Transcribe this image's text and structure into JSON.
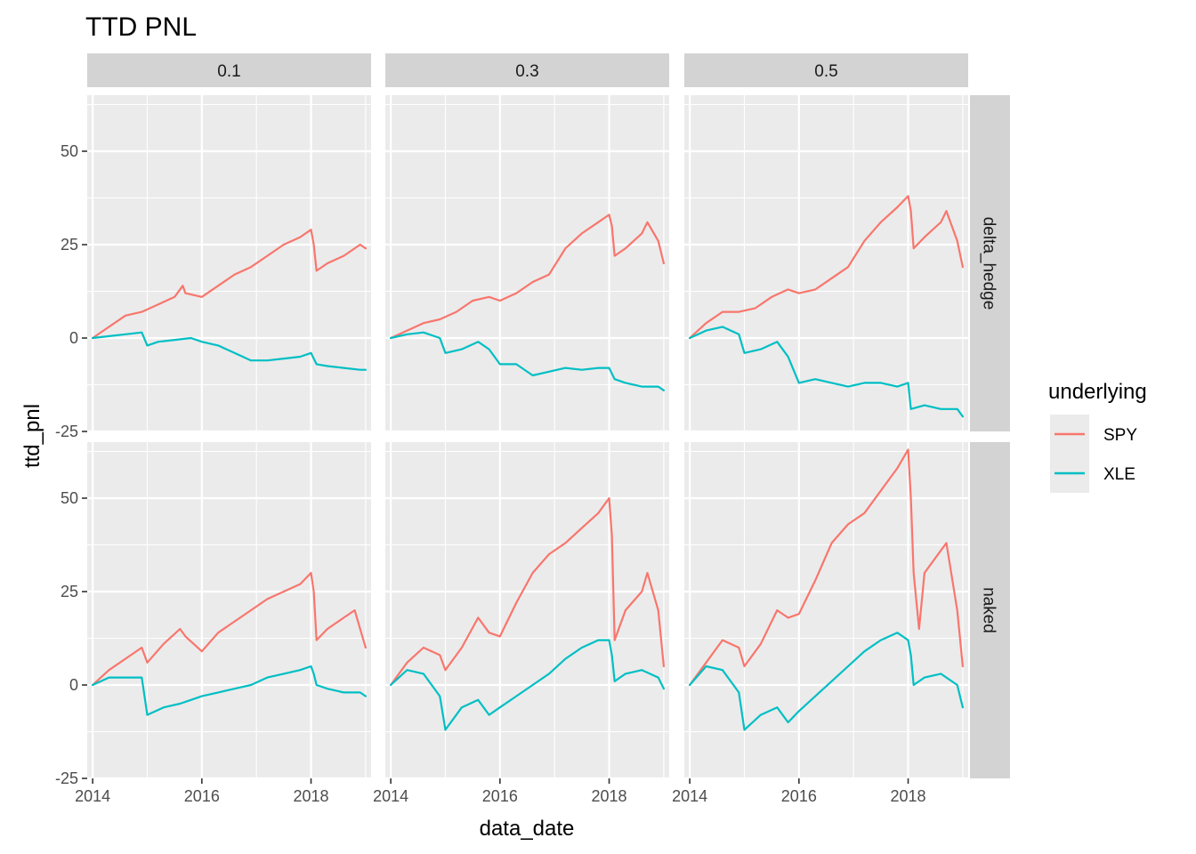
{
  "chart_data": {
    "type": "line",
    "title": "TTD PNL",
    "xlabel": "data_date",
    "ylabel": "ttd_pnl",
    "xlim": [
      2013.9,
      2019.1
    ],
    "ylim": [
      -25,
      65
    ],
    "x_ticks": [
      2014,
      2016,
      2018
    ],
    "y_ticks": [
      -25,
      0,
      25,
      50
    ],
    "column_facets": [
      "0.1",
      "0.3",
      "0.5"
    ],
    "row_facets": [
      "delta_hedge",
      "naked"
    ],
    "grid": true,
    "legend": {
      "title": "underlying",
      "position": "right",
      "entries": [
        {
          "name": "SPY",
          "color": "#F8766D"
        },
        {
          "name": "XLE",
          "color": "#00BFC4"
        }
      ]
    },
    "panels": [
      {
        "col": "0.1",
        "row": "delta_hedge",
        "series": [
          {
            "name": "SPY",
            "x": [
              2014.0,
              2014.3,
              2014.6,
              2014.9,
              2015.2,
              2015.5,
              2015.65,
              2015.7,
              2016.0,
              2016.3,
              2016.6,
              2016.9,
              2017.2,
              2017.5,
              2017.8,
              2018.0,
              2018.05,
              2018.1,
              2018.3,
              2018.6,
              2018.9,
              2019.0
            ],
            "y": [
              0,
              3,
              6,
              7,
              9,
              11,
              14,
              12,
              11,
              14,
              17,
              19,
              22,
              25,
              27,
              29,
              25,
              18,
              20,
              22,
              25,
              24
            ]
          },
          {
            "name": "XLE",
            "x": [
              2014.0,
              2014.3,
              2014.6,
              2014.9,
              2015.0,
              2015.2,
              2015.5,
              2015.8,
              2016.0,
              2016.3,
              2016.6,
              2016.9,
              2017.2,
              2017.5,
              2017.8,
              2018.0,
              2018.1,
              2018.3,
              2018.6,
              2018.9,
              2019.0
            ],
            "y": [
              0,
              0.5,
              1,
              1.5,
              -2,
              -1,
              -0.5,
              0,
              -1,
              -2,
              -4,
              -6,
              -6,
              -5.5,
              -5,
              -4,
              -7,
              -7.5,
              -8,
              -8.5,
              -8.5
            ]
          }
        ]
      },
      {
        "col": "0.3",
        "row": "delta_hedge",
        "series": [
          {
            "name": "SPY",
            "x": [
              2014.0,
              2014.3,
              2014.6,
              2014.9,
              2015.2,
              2015.5,
              2015.8,
              2016.0,
              2016.3,
              2016.6,
              2016.9,
              2017.2,
              2017.5,
              2017.8,
              2018.0,
              2018.05,
              2018.1,
              2018.3,
              2018.6,
              2018.7,
              2018.9,
              2019.0
            ],
            "y": [
              0,
              2,
              4,
              5,
              7,
              10,
              11,
              10,
              12,
              15,
              17,
              24,
              28,
              31,
              33,
              30,
              22,
              24,
              28,
              31,
              26,
              20
            ]
          },
          {
            "name": "XLE",
            "x": [
              2014.0,
              2014.3,
              2014.6,
              2014.9,
              2015.0,
              2015.3,
              2015.6,
              2015.8,
              2016.0,
              2016.3,
              2016.6,
              2016.9,
              2017.2,
              2017.5,
              2017.8,
              2018.0,
              2018.1,
              2018.3,
              2018.6,
              2018.9,
              2019.0
            ],
            "y": [
              0,
              1,
              1.5,
              0,
              -4,
              -3,
              -1,
              -3,
              -7,
              -7,
              -10,
              -9,
              -8,
              -8.5,
              -8,
              -8,
              -11,
              -12,
              -13,
              -13,
              -14
            ]
          }
        ]
      },
      {
        "col": "0.5",
        "row": "delta_hedge",
        "series": [
          {
            "name": "SPY",
            "x": [
              2014.0,
              2014.3,
              2014.6,
              2014.9,
              2015.2,
              2015.5,
              2015.8,
              2016.0,
              2016.3,
              2016.6,
              2016.9,
              2017.2,
              2017.5,
              2017.8,
              2018.0,
              2018.05,
              2018.1,
              2018.3,
              2018.6,
              2018.7,
              2018.9,
              2019.0
            ],
            "y": [
              0,
              4,
              7,
              7,
              8,
              11,
              13,
              12,
              13,
              16,
              19,
              26,
              31,
              35,
              38,
              34,
              24,
              27,
              31,
              34,
              26,
              19
            ]
          },
          {
            "name": "XLE",
            "x": [
              2014.0,
              2014.3,
              2014.6,
              2014.9,
              2015.0,
              2015.3,
              2015.6,
              2015.8,
              2016.0,
              2016.3,
              2016.6,
              2016.9,
              2017.2,
              2017.5,
              2017.8,
              2018.0,
              2018.05,
              2018.3,
              2018.6,
              2018.9,
              2019.0
            ],
            "y": [
              0,
              2,
              3,
              1,
              -4,
              -3,
              -1,
              -5,
              -12,
              -11,
              -12,
              -13,
              -12,
              -12,
              -13,
              -12,
              -19,
              -18,
              -19,
              -19,
              -21
            ]
          }
        ]
      },
      {
        "col": "0.1",
        "row": "naked",
        "series": [
          {
            "name": "SPY",
            "x": [
              2014.0,
              2014.3,
              2014.6,
              2014.9,
              2015.0,
              2015.3,
              2015.6,
              2015.7,
              2016.0,
              2016.3,
              2016.6,
              2016.9,
              2017.2,
              2017.5,
              2017.8,
              2018.0,
              2018.05,
              2018.1,
              2018.3,
              2018.6,
              2018.8,
              2018.9,
              2019.0
            ],
            "y": [
              0,
              4,
              7,
              10,
              6,
              11,
              15,
              13,
              9,
              14,
              17,
              20,
              23,
              25,
              27,
              30,
              25,
              12,
              15,
              18,
              20,
              15,
              10
            ]
          },
          {
            "name": "XLE",
            "x": [
              2014.0,
              2014.3,
              2014.6,
              2014.9,
              2015.0,
              2015.3,
              2015.6,
              2015.8,
              2016.0,
              2016.3,
              2016.6,
              2016.9,
              2017.2,
              2017.5,
              2017.8,
              2018.0,
              2018.05,
              2018.1,
              2018.3,
              2018.6,
              2018.9,
              2019.0
            ],
            "y": [
              0,
              2,
              2,
              2,
              -8,
              -6,
              -5,
              -4,
              -3,
              -2,
              -1,
              0,
              2,
              3,
              4,
              5,
              3,
              0,
              -1,
              -2,
              -2,
              -3
            ]
          }
        ]
      },
      {
        "col": "0.3",
        "row": "naked",
        "series": [
          {
            "name": "SPY",
            "x": [
              2014.0,
              2014.3,
              2014.6,
              2014.9,
              2015.0,
              2015.3,
              2015.6,
              2015.8,
              2016.0,
              2016.3,
              2016.6,
              2016.9,
              2017.2,
              2017.5,
              2017.8,
              2018.0,
              2018.05,
              2018.1,
              2018.3,
              2018.6,
              2018.7,
              2018.9,
              2019.0
            ],
            "y": [
              0,
              6,
              10,
              8,
              4,
              10,
              18,
              14,
              13,
              22,
              30,
              35,
              38,
              42,
              46,
              50,
              40,
              12,
              20,
              25,
              30,
              20,
              5
            ]
          },
          {
            "name": "XLE",
            "x": [
              2014.0,
              2014.3,
              2014.6,
              2014.9,
              2015.0,
              2015.3,
              2015.6,
              2015.8,
              2016.0,
              2016.3,
              2016.6,
              2016.9,
              2017.2,
              2017.5,
              2017.8,
              2018.0,
              2018.05,
              2018.1,
              2018.3,
              2018.6,
              2018.9,
              2019.0
            ],
            "y": [
              0,
              4,
              3,
              -3,
              -12,
              -6,
              -4,
              -8,
              -6,
              -3,
              0,
              3,
              7,
              10,
              12,
              12,
              8,
              1,
              3,
              4,
              2,
              -1
            ]
          }
        ]
      },
      {
        "col": "0.5",
        "row": "naked",
        "series": [
          {
            "name": "SPY",
            "x": [
              2014.0,
              2014.3,
              2014.6,
              2014.9,
              2015.0,
              2015.3,
              2015.6,
              2015.8,
              2016.0,
              2016.3,
              2016.6,
              2016.9,
              2017.2,
              2017.5,
              2017.8,
              2018.0,
              2018.05,
              2018.1,
              2018.2,
              2018.3,
              2018.6,
              2018.7,
              2018.9,
              2019.0
            ],
            "y": [
              0,
              6,
              12,
              10,
              5,
              11,
              20,
              18,
              19,
              28,
              38,
              43,
              46,
              52,
              58,
              63,
              50,
              30,
              15,
              30,
              36,
              38,
              20,
              5
            ]
          },
          {
            "name": "XLE",
            "x": [
              2014.0,
              2014.3,
              2014.6,
              2014.9,
              2015.0,
              2015.3,
              2015.6,
              2015.8,
              2016.0,
              2016.3,
              2016.6,
              2016.9,
              2017.2,
              2017.5,
              2017.8,
              2018.0,
              2018.05,
              2018.1,
              2018.3,
              2018.6,
              2018.9,
              2019.0
            ],
            "y": [
              0,
              5,
              4,
              -2,
              -12,
              -8,
              -6,
              -10,
              -7,
              -3,
              1,
              5,
              9,
              12,
              14,
              12,
              8,
              0,
              2,
              3,
              0,
              -6
            ]
          }
        ]
      }
    ]
  }
}
